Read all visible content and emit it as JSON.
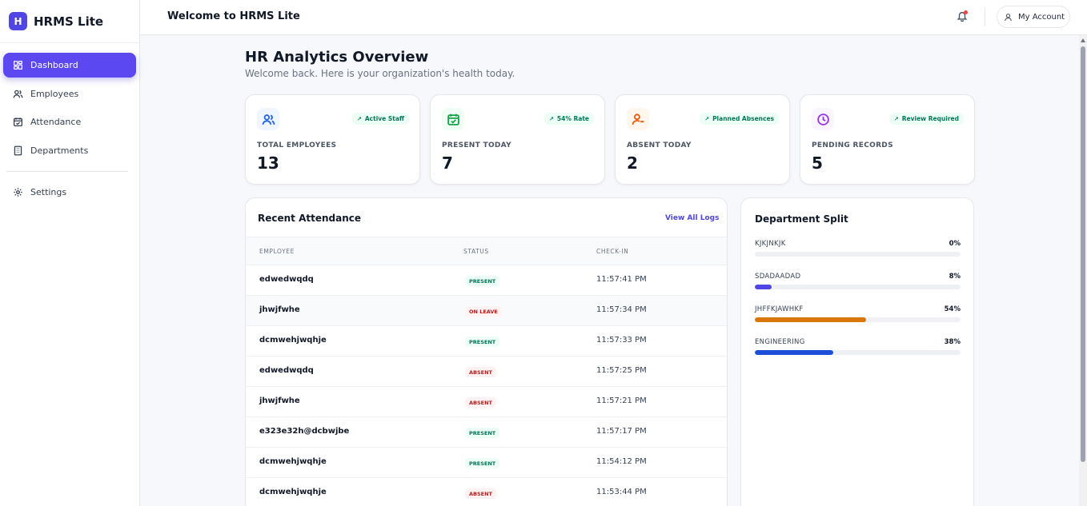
{
  "app": {
    "logo_letter": "H",
    "name": "HRMS Lite"
  },
  "sidebar": {
    "items": [
      {
        "label": "Dashboard",
        "icon": "dashboard-icon",
        "active": true
      },
      {
        "label": "Employees",
        "icon": "users-icon",
        "active": false
      },
      {
        "label": "Attendance",
        "icon": "calendar-check-icon",
        "active": false
      },
      {
        "label": "Departments",
        "icon": "building-icon",
        "active": false
      }
    ],
    "settings": {
      "label": "Settings",
      "icon": "gear-icon"
    }
  },
  "header": {
    "title": "Welcome to HRMS Lite",
    "account_label": "My Account"
  },
  "page": {
    "title": "HR Analytics Overview",
    "subtitle": "Welcome back. Here is your organization's health today."
  },
  "stats": [
    {
      "label": "TOTAL EMPLOYEES",
      "value": "13",
      "badge": "Active Staff",
      "icon": "users-icon",
      "color": "#2563eb"
    },
    {
      "label": "PRESENT TODAY",
      "value": "7",
      "badge": "54% Rate",
      "icon": "calendar-check-icon",
      "color": "#16a34a"
    },
    {
      "label": "ABSENT TODAY",
      "value": "2",
      "badge": "Planned Absences",
      "icon": "user-minus-icon",
      "color": "#ea580c"
    },
    {
      "label": "PENDING RECORDS",
      "value": "5",
      "badge": "Review Required",
      "icon": "clock-icon",
      "color": "#9333ea"
    }
  ],
  "attendance": {
    "title": "Recent Attendance",
    "link": "View All Logs",
    "columns": {
      "employee": "EMPLOYEE",
      "status": "STATUS",
      "checkin": "CHECK-IN"
    },
    "rows": [
      {
        "employee": "edwedwqdq",
        "status": "PRESENT",
        "checkin": "11:57:41 PM"
      },
      {
        "employee": "jhwjfwhe",
        "status": "ON LEAVE",
        "checkin": "11:57:34 PM"
      },
      {
        "employee": "dcmwehjwqhje",
        "status": "PRESENT",
        "checkin": "11:57:33 PM"
      },
      {
        "employee": "edwedwqdq",
        "status": "ABSENT",
        "checkin": "11:57:25 PM"
      },
      {
        "employee": "jhwjfwhe",
        "status": "ABSENT",
        "checkin": "11:57:21 PM"
      },
      {
        "employee": "e323e32h@dcbwjbe",
        "status": "PRESENT",
        "checkin": "11:57:17 PM"
      },
      {
        "employee": "dcmwehjwqhje",
        "status": "PRESENT",
        "checkin": "11:54:12 PM"
      },
      {
        "employee": "dcmwehjwqhje",
        "status": "ABSENT",
        "checkin": "11:53:44 PM"
      }
    ]
  },
  "departments": {
    "title": "Department Split",
    "items": [
      {
        "name": "KJKJNKJK",
        "percent": "0%",
        "value": 0,
        "color": "#9ca3af"
      },
      {
        "name": "SDADAADAD",
        "percent": "8%",
        "value": 8,
        "color": "#4f46e5"
      },
      {
        "name": "JHFFKJAWHKF",
        "percent": "54%",
        "value": 54,
        "color": "#d97706"
      },
      {
        "name": "ENGINEERING",
        "percent": "38%",
        "value": 38,
        "color": "#1d4ed8"
      }
    ]
  }
}
